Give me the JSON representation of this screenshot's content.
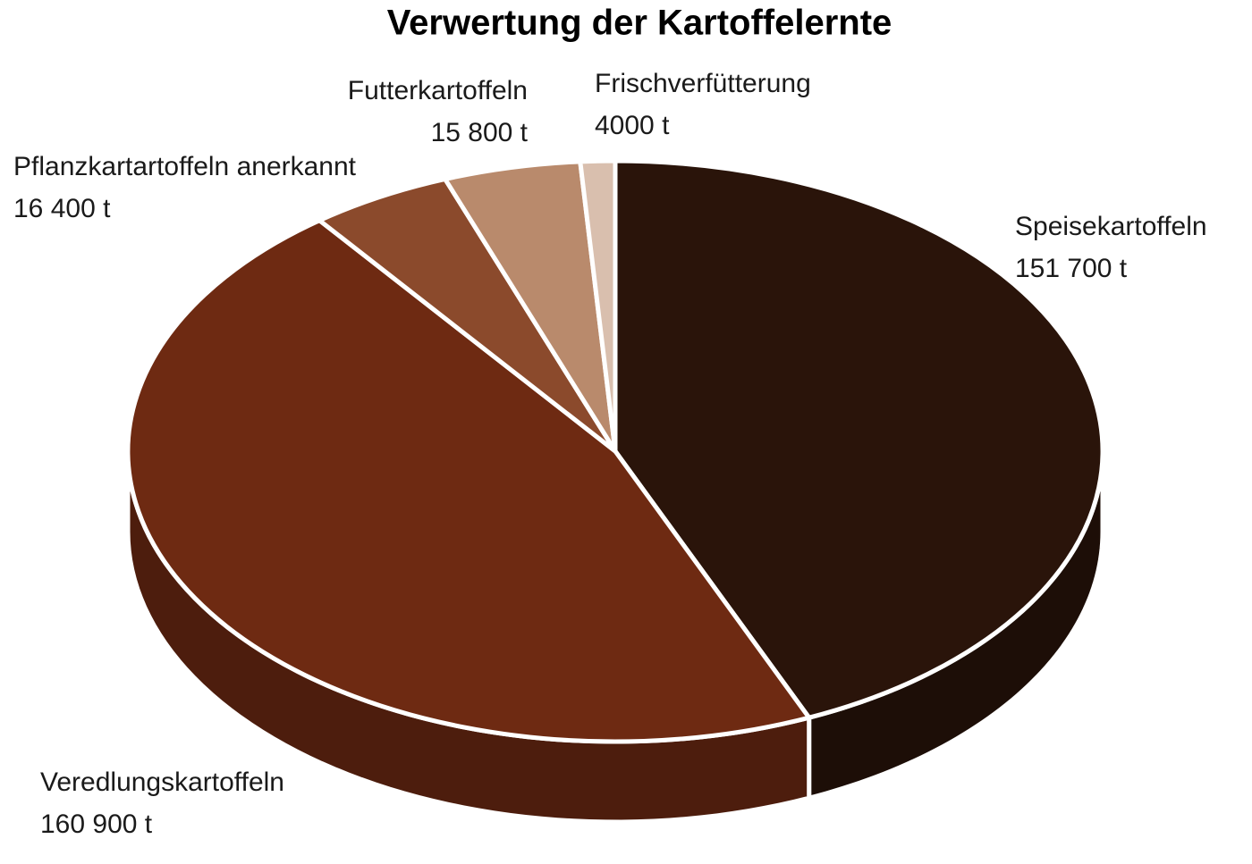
{
  "chart_data": {
    "type": "pie",
    "title": "Verwertung der Kartoffelernte",
    "categories": [
      "Speisekartoffeln",
      "Veredlungskartoffeln",
      "Pflanzkartartoffeln anerkannt",
      "Futterkartoffeln",
      "Frischverfütterung"
    ],
    "values": [
      151700,
      160900,
      16400,
      15800,
      4000
    ],
    "value_labels": [
      "151 700 t",
      "160 900 t",
      "16 400 t",
      "15 800 t",
      "4000 t"
    ],
    "colors": [
      "#2a140a",
      "#6e2a12",
      "#8b4a2c",
      "#b98a6c",
      "#d9bfae"
    ],
    "three_d": true
  }
}
